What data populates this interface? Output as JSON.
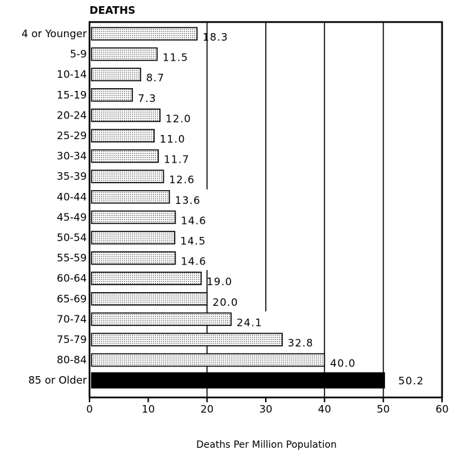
{
  "chart_data": {
    "type": "bar",
    "orientation": "horizontal",
    "title": "DEATHS",
    "xlabel": "Deaths Per Million Population",
    "ylabel": "",
    "xlim": [
      0,
      60
    ],
    "xticks": [
      "0",
      "10",
      "20",
      "30",
      "40",
      "50",
      "60"
    ],
    "grid": "vertical lines at 20, 30, 40, 50",
    "categories": [
      "4 or Younger",
      "5-9",
      "10-14",
      "15-19",
      "20-24",
      "25-29",
      "30-34",
      "35-39",
      "40-44",
      "45-49",
      "50-54",
      "55-59",
      "60-64",
      "65-69",
      "70-74",
      "75-79",
      "80-84",
      "85 or Older"
    ],
    "values": [
      18.3,
      11.5,
      8.7,
      7.3,
      12.0,
      11.0,
      11.7,
      12.6,
      13.6,
      14.6,
      14.5,
      14.6,
      19.0,
      20.0,
      24.1,
      32.8,
      40.0,
      50.2
    ],
    "value_labels": [
      "18.3",
      "11.5",
      "8.7",
      "7.3",
      "12.0",
      "11.0",
      "11.7",
      "12.6",
      "13.6",
      "14.6",
      "14.5",
      "14.6",
      "19.0",
      "20.0",
      "24.1",
      "32.8",
      "40.0",
      "50.2"
    ],
    "highlight_index": 17,
    "colors": {
      "bar_fill": "#e6e6e6",
      "highlight_fill": "#000000",
      "ink": "#000000"
    }
  }
}
